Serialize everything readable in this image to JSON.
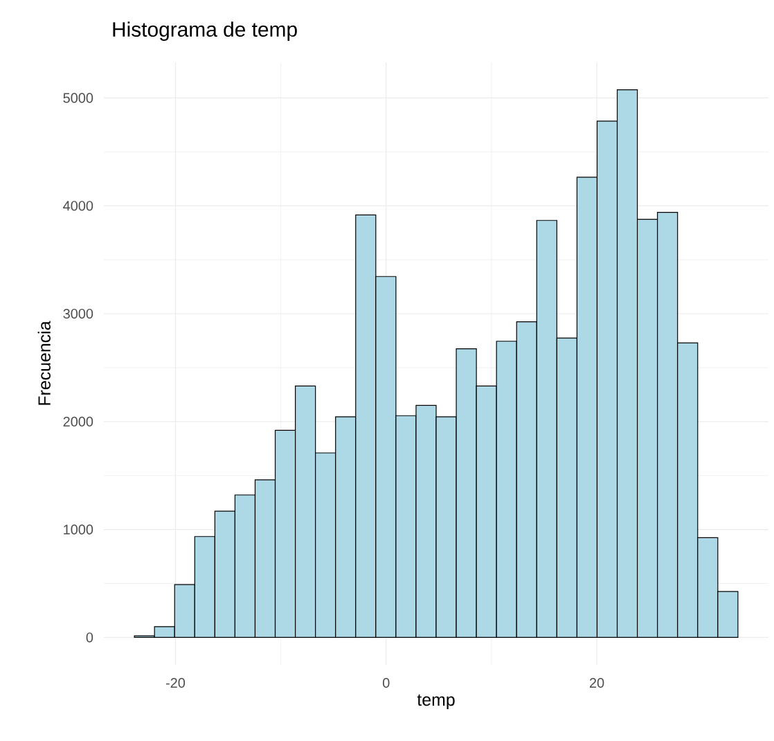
{
  "chart_data": {
    "type": "histogram",
    "title": "Histograma de temp",
    "xlabel": "temp",
    "ylabel": "Frecuencia",
    "bins": [
      -23.9,
      -21.99,
      -20.08,
      -18.17,
      -16.26,
      -14.35,
      -12.44,
      -10.53,
      -8.62,
      -6.71,
      -4.8,
      -2.89,
      -0.98,
      0.93,
      2.84,
      4.75,
      6.66,
      8.57,
      10.48,
      12.39,
      14.3,
      16.21,
      18.12,
      20.03,
      21.94,
      23.85,
      25.76,
      27.67,
      29.58,
      31.49,
      33.4
    ],
    "values": [
      15,
      100,
      490,
      935,
      1170,
      1320,
      1460,
      1920,
      2330,
      1710,
      2045,
      3915,
      3345,
      2055,
      2150,
      2045,
      2675,
      2330,
      2745,
      2925,
      3865,
      2775,
      4265,
      4785,
      5075,
      3875,
      3940,
      2730,
      925,
      425
    ],
    "color": "#add8e6",
    "xlim": [
      -26.8,
      36.3
    ],
    "ylim": [
      -254,
      5330
    ],
    "xticks": [
      -20,
      0,
      20
    ],
    "yticks": [
      0,
      1000,
      2000,
      3000,
      4000,
      5000
    ],
    "grid": true
  }
}
